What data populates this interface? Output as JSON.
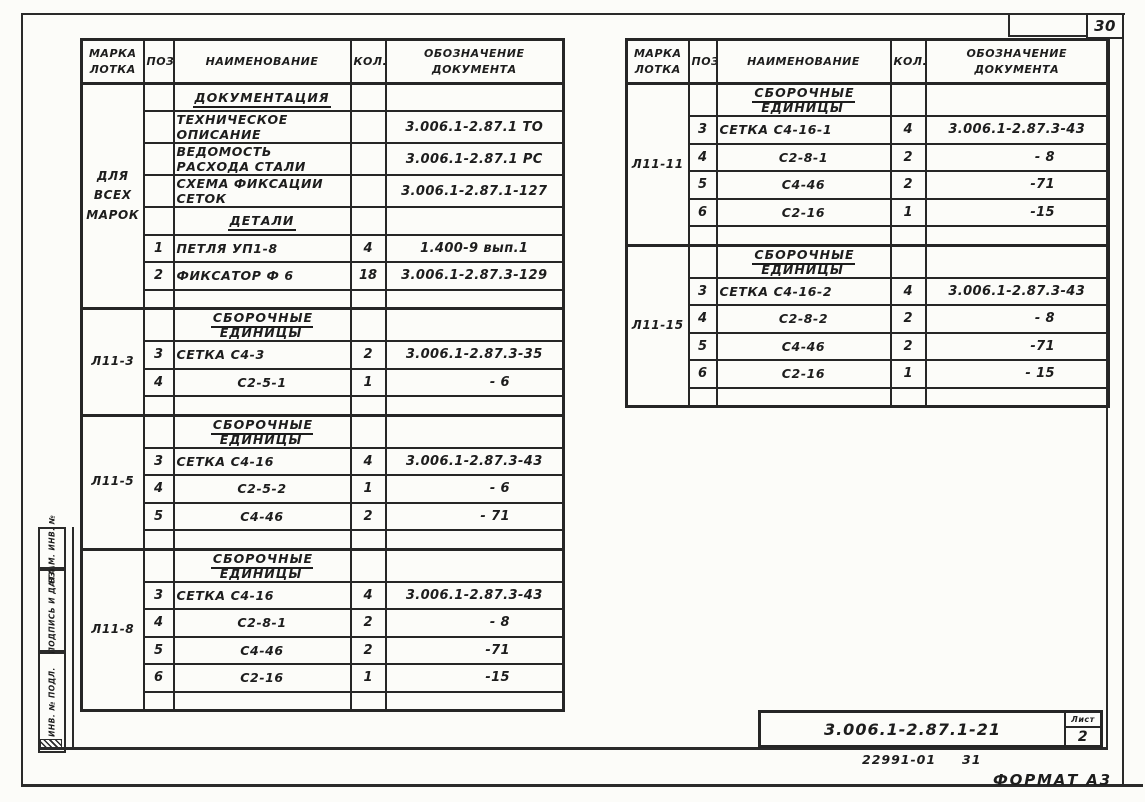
{
  "sheet": {
    "page_number": "30",
    "doc_number": "3.006.1-2.87.1-21",
    "sheet_label": "Лист",
    "sheet_number": "2",
    "stamp_code": "22991-01",
    "stamp_code2": "31",
    "format_label": "ФОРМАТ А3"
  },
  "side_stamp": {
    "labels": [
      "ВЗАМ. ИНВ. №",
      "ПОДПИСЬ И ДАТА",
      "ИНВ. № ПОДЛ."
    ]
  },
  "tables": [
    {
      "headers": {
        "mark": "МАРКА\nЛОТКА",
        "pos": "ПОЗ.",
        "name": "НАИМЕНОВАНИЕ",
        "qty": "КОЛ.",
        "doc": "ОБОЗНАЧЕНИЕ\nДОКУМЕНТА"
      },
      "groups": [
        {
          "mark": "ДЛЯ ВСЕХ\nМАРОК",
          "rows": [
            {
              "kind": "section",
              "name": "ДОКУМЕНТАЦИЯ"
            },
            {
              "kind": "item",
              "pos": "",
              "name": "ТЕХНИЧЕСКОЕ ОПИСАНИЕ",
              "qty": "",
              "doc": "3.006.1-2.87.1 ТО"
            },
            {
              "kind": "item",
              "pos": "",
              "name": "ВЕДОМОСТЬ РАСХОДА СТАЛИ",
              "qty": "",
              "doc": "3.006.1-2.87.1 РС"
            },
            {
              "kind": "item",
              "pos": "",
              "name": "СХЕМА ФИКСАЦИИ СЕТОК",
              "qty": "",
              "doc": "3.006.1-2.87.1-127"
            },
            {
              "kind": "section",
              "name": "ДЕТАЛИ"
            },
            {
              "kind": "item",
              "pos": "1",
              "name": "ПЕТЛЯ УП1-8",
              "qty": "4",
              "doc": "1.400-9 вып.1"
            },
            {
              "kind": "item",
              "pos": "2",
              "name": "ФИКСАТОР Ф 6",
              "qty": "18",
              "doc": "3.006.1-2.87.3-129"
            },
            {
              "kind": "spacer"
            }
          ]
        },
        {
          "mark": "Л11-3",
          "rows": [
            {
              "kind": "section",
              "name": "СБОРОЧНЫЕ ЕДИНИЦЫ"
            },
            {
              "kind": "item",
              "pos": "3",
              "name": "СЕТКА С4-3",
              "qty": "2",
              "doc": "3.006.1-2.87.3-35"
            },
            {
              "kind": "item",
              "pos": "4",
              "name": "С2-5-1",
              "center": true,
              "qty": "1",
              "doc": "- 6"
            },
            {
              "kind": "spacer"
            }
          ]
        },
        {
          "mark": "Л11-5",
          "rows": [
            {
              "kind": "section",
              "name": "СБОРОЧНЫЕ ЕДИНИЦЫ"
            },
            {
              "kind": "item",
              "pos": "3",
              "name": "СЕТКА С4-16",
              "qty": "4",
              "doc": "3.006.1-2.87.3-43"
            },
            {
              "kind": "item",
              "pos": "4",
              "name": "С2-5-2",
              "center": true,
              "qty": "1",
              "doc": "- 6"
            },
            {
              "kind": "item",
              "pos": "5",
              "name": "С4-46",
              "center": true,
              "qty": "2",
              "doc": "- 71"
            },
            {
              "kind": "spacer"
            }
          ]
        },
        {
          "mark": "Л11-8",
          "rows": [
            {
              "kind": "section",
              "name": "СБОРОЧНЫЕ ЕДИНИЦЫ"
            },
            {
              "kind": "item",
              "pos": "3",
              "name": "СЕТКА С4-16",
              "qty": "4",
              "doc": "3.006.1-2.87.3-43"
            },
            {
              "kind": "item",
              "pos": "4",
              "name": "С2-8-1",
              "center": true,
              "qty": "2",
              "doc": "- 8"
            },
            {
              "kind": "item",
              "pos": "5",
              "name": "С4-46",
              "center": true,
              "qty": "2",
              "doc": "-71"
            },
            {
              "kind": "item",
              "pos": "6",
              "name": "С2-16",
              "center": true,
              "qty": "1",
              "doc": "-15"
            },
            {
              "kind": "spacer"
            }
          ]
        }
      ]
    },
    {
      "headers": {
        "mark": "МАРКА\nЛОТКА",
        "pos": "ПОЗ.",
        "name": "НАИМЕНОВАНИЕ",
        "qty": "КОЛ.",
        "doc": "ОБОЗНАЧЕНИЕ\nДОКУМЕНТА"
      },
      "groups": [
        {
          "mark": "Л11-11",
          "rows": [
            {
              "kind": "section",
              "name": "СБОРОЧНЫЕ ЕДИНИЦЫ"
            },
            {
              "kind": "item",
              "pos": "3",
              "name": "СЕТКА С4-16-1",
              "qty": "4",
              "doc": "3.006.1-2.87.3-43"
            },
            {
              "kind": "item",
              "pos": "4",
              "name": "С2-8-1",
              "center": true,
              "qty": "2",
              "doc": "- 8"
            },
            {
              "kind": "item",
              "pos": "5",
              "name": "С4-46",
              "center": true,
              "qty": "2",
              "doc": "-71"
            },
            {
              "kind": "item",
              "pos": "6",
              "name": "С2-16",
              "center": true,
              "qty": "1",
              "doc": "-15"
            },
            {
              "kind": "spacer"
            }
          ]
        },
        {
          "mark": "Л11-15",
          "rows": [
            {
              "kind": "section",
              "name": "СБОРОЧНЫЕ ЕДИНИЦЫ"
            },
            {
              "kind": "item",
              "pos": "3",
              "name": "СЕТКА С4-16-2",
              "qty": "4",
              "doc": "3.006.1-2.87.3-43"
            },
            {
              "kind": "item",
              "pos": "4",
              "name": "С2-8-2",
              "center": true,
              "qty": "2",
              "doc": "- 8"
            },
            {
              "kind": "item",
              "pos": "5",
              "name": "С4-46",
              "center": true,
              "qty": "2",
              "doc": "-71"
            },
            {
              "kind": "item",
              "pos": "6",
              "name": "С2-16",
              "center": true,
              "qty": "1",
              "doc": "- 15"
            },
            {
              "kind": "spacer"
            }
          ]
        }
      ]
    }
  ]
}
